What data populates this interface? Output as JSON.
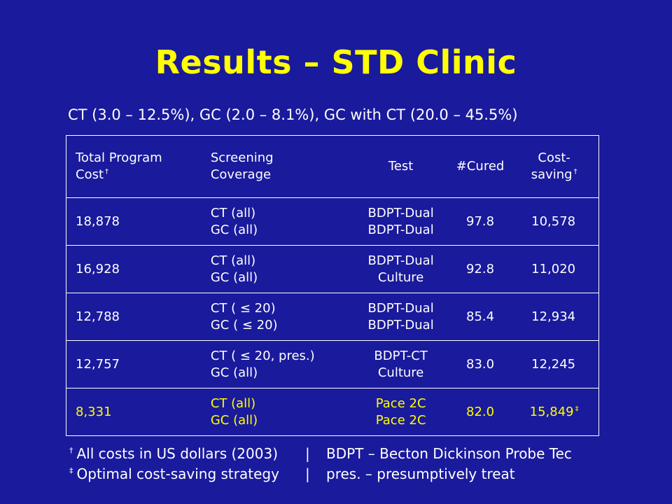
{
  "title": "Results – STD Clinic",
  "subtitle": "CT (3.0 – 12.5%), GC (2.0 – 8.1%), GC with CT (20.0 – 45.5%)",
  "table": {
    "headers": {
      "total_cost": [
        "Total Program",
        "Cost"
      ],
      "total_cost_mark": "†",
      "coverage": [
        "Screening",
        "Coverage"
      ],
      "test": "Test",
      "cured": "#Cured",
      "cost_saving": [
        "Cost-",
        "saving"
      ],
      "cost_saving_mark": "†"
    },
    "rows": [
      {
        "cost": "18,878",
        "coverage": [
          "CT (all)",
          "GC (all)"
        ],
        "test": [
          "BDPT-Dual",
          "BDPT-Dual"
        ],
        "cured": "97.8",
        "saving": "10,578",
        "mark": ""
      },
      {
        "cost": "16,928",
        "coverage": [
          "CT (all)",
          "GC (all)"
        ],
        "test": [
          "BDPT-Dual",
          "Culture"
        ],
        "cured": "92.8",
        "saving": "11,020",
        "mark": ""
      },
      {
        "cost": "12,788",
        "coverage": [
          "CT ( ≤ 20)",
          "GC ( ≤ 20)"
        ],
        "test": [
          "BDPT-Dual",
          "BDPT-Dual"
        ],
        "cured": "85.4",
        "saving": "12,934",
        "mark": ""
      },
      {
        "cost": "12,757",
        "coverage": [
          "CT ( ≤ 20, pres.)",
          "GC (all)"
        ],
        "test": [
          "BDPT-CT",
          "Culture"
        ],
        "cured": "83.0",
        "saving": "12,245",
        "mark": ""
      },
      {
        "cost": "8,331",
        "coverage": [
          "CT (all)",
          "GC (all)"
        ],
        "test": [
          "Pace 2C",
          "Pace 2C"
        ],
        "cured": "82.0",
        "saving": "15,849",
        "mark": "‡"
      }
    ]
  },
  "footnotes": [
    {
      "mark": "†",
      "left": "All costs in US dollars (2003)",
      "sep": "|",
      "right": "BDPT – Becton Dickinson Probe Tec"
    },
    {
      "mark": "‡",
      "left": "Optimal cost-saving strategy",
      "sep": "|",
      "right": "pres. – presumptively treat"
    }
  ],
  "colors": {
    "background": "#1a1a9c",
    "title": "#ffff00",
    "text": "#ffffff",
    "highlight": "#ffff00"
  }
}
